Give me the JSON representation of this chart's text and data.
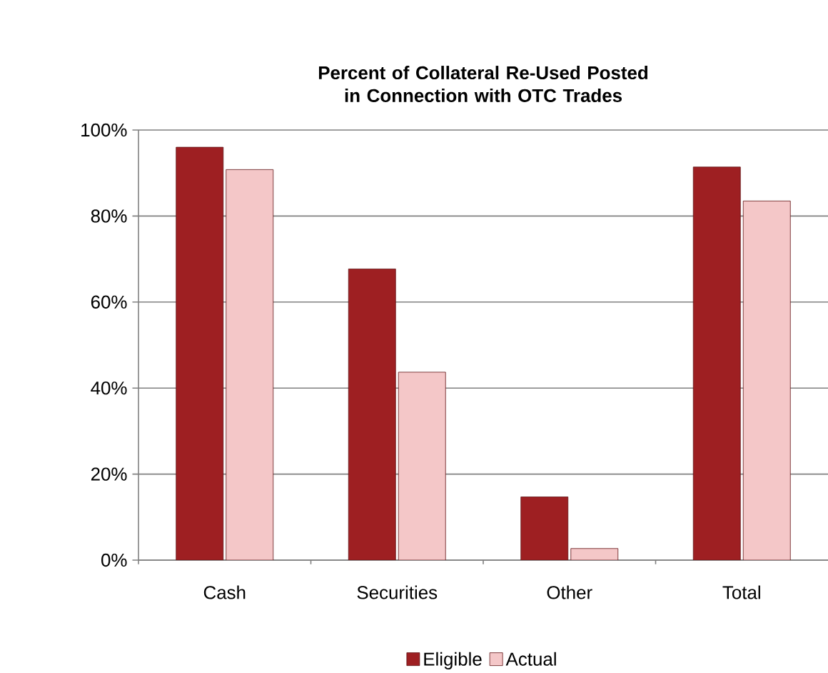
{
  "chart_data": {
    "type": "bar",
    "title": "Percent of Collateral Re-Used Posted in Connection with OTC Trades",
    "categories": [
      "Cash",
      "Securities",
      "Other",
      "Total"
    ],
    "series": [
      {
        "name": "Eligible",
        "color": "#9e1f22",
        "values": [
          96,
          67.7,
          14.7,
          91.4
        ]
      },
      {
        "name": "Actual",
        "color": "#f4c7c8",
        "values": [
          90.8,
          43.7,
          2.7,
          83.5
        ]
      }
    ],
    "ylim": [
      0,
      100
    ],
    "yticks": [
      {
        "value": 0,
        "label": "0%"
      },
      {
        "value": 20,
        "label": "20%"
      },
      {
        "value": 40,
        "label": "40%"
      },
      {
        "value": 60,
        "label": "60%"
      },
      {
        "value": 80,
        "label": "80%"
      },
      {
        "value": 100,
        "label": "100%"
      }
    ],
    "grid": "y",
    "legend": "bottom"
  }
}
